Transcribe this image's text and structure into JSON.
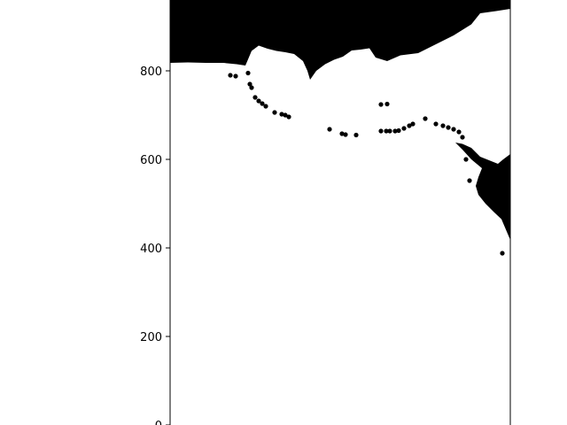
{
  "chart_data": {
    "type": "scatter",
    "title": "",
    "xlabel": "",
    "ylabel": "",
    "ylim": [
      0,
      960
    ],
    "grid": false,
    "legend": "none",
    "marker_color": "#000000",
    "yticks": [
      {
        "value": 0,
        "label": "0"
      },
      {
        "value": 200,
        "label": "200"
      },
      {
        "value": 400,
        "label": "400"
      },
      {
        "value": 600,
        "label": "600"
      },
      {
        "value": 800,
        "label": "800"
      }
    ],
    "filled_regions": [
      {
        "name": "north-landmass",
        "outline": [
          [
            0,
            960
          ],
          [
            0,
            818
          ],
          [
            20,
            819
          ],
          [
            40,
            818
          ],
          [
            60,
            818
          ],
          [
            75,
            815
          ],
          [
            85,
            812
          ],
          [
            88,
            826
          ],
          [
            92,
            845
          ],
          [
            100,
            857
          ],
          [
            110,
            850
          ],
          [
            120,
            845
          ],
          [
            130,
            842
          ],
          [
            140,
            838
          ],
          [
            150,
            822
          ],
          [
            155,
            800
          ],
          [
            158,
            780
          ],
          [
            165,
            800
          ],
          [
            175,
            815
          ],
          [
            185,
            825
          ],
          [
            195,
            832
          ],
          [
            205,
            846
          ],
          [
            215,
            848
          ],
          [
            225,
            851
          ],
          [
            232,
            830
          ],
          [
            245,
            822
          ],
          [
            260,
            835
          ],
          [
            280,
            840
          ],
          [
            300,
            860
          ],
          [
            320,
            880
          ],
          [
            340,
            905
          ],
          [
            350,
            930
          ],
          [
            368,
            935
          ],
          [
            384,
            940
          ],
          [
            384,
            960
          ]
        ]
      },
      {
        "name": "east-landmass",
        "outline": [
          [
            384,
            612
          ],
          [
            376,
            600
          ],
          [
            370,
            590
          ],
          [
            360,
            598
          ],
          [
            350,
            606
          ],
          [
            340,
            626
          ],
          [
            330,
            635
          ],
          [
            322,
            638
          ],
          [
            330,
            622
          ],
          [
            340,
            600
          ],
          [
            352,
            580
          ],
          [
            348,
            560
          ],
          [
            345,
            540
          ],
          [
            348,
            520
          ],
          [
            356,
            500
          ],
          [
            366,
            480
          ],
          [
            374,
            465
          ],
          [
            384,
            418
          ]
        ]
      }
    ],
    "points": [
      [
        68,
        790
      ],
      [
        74,
        788
      ],
      [
        88,
        795
      ],
      [
        90,
        770
      ],
      [
        92,
        762
      ],
      [
        96,
        740
      ],
      [
        100,
        732
      ],
      [
        104,
        726
      ],
      [
        108,
        720
      ],
      [
        118,
        706
      ],
      [
        126,
        702
      ],
      [
        130,
        700
      ],
      [
        134,
        696
      ],
      [
        180,
        668
      ],
      [
        194,
        658
      ],
      [
        198,
        656
      ],
      [
        210,
        655
      ],
      [
        238,
        724
      ],
      [
        245,
        725
      ],
      [
        238,
        664
      ],
      [
        244,
        664
      ],
      [
        248,
        664
      ],
      [
        254,
        664
      ],
      [
        258,
        665
      ],
      [
        264,
        670
      ],
      [
        270,
        676
      ],
      [
        274,
        680
      ],
      [
        288,
        692
      ],
      [
        300,
        680
      ],
      [
        308,
        676
      ],
      [
        314,
        672
      ],
      [
        320,
        668
      ],
      [
        326,
        662
      ],
      [
        330,
        650
      ],
      [
        334,
        600
      ],
      [
        338,
        552
      ],
      [
        375,
        388
      ]
    ]
  }
}
